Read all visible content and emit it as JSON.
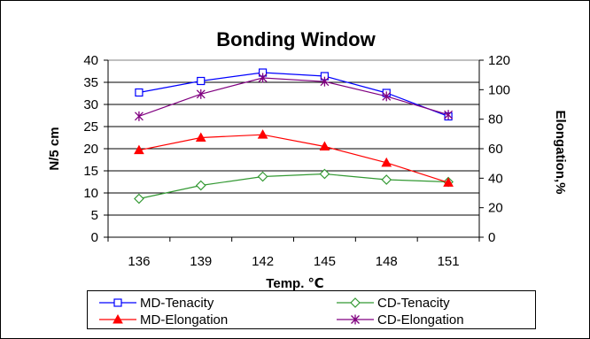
{
  "chart_data": {
    "type": "line",
    "title": "Bonding Window",
    "categories": [
      "136",
      "139",
      "142",
      "145",
      "148",
      "151"
    ],
    "xlabel": "Temp. ℃",
    "ylabel": "N/5 cm",
    "y2label": "Elongation,%",
    "ylim": [
      0,
      40
    ],
    "y2lim": [
      0,
      120
    ],
    "yticks": [
      "0",
      "5",
      "10",
      "15",
      "20",
      "25",
      "30",
      "35",
      "40"
    ],
    "y2ticks": [
      "0",
      "20",
      "40",
      "60",
      "80",
      "100",
      "120"
    ],
    "grid": true,
    "legend_position": "bottom",
    "series": [
      {
        "name": "MD-Tenacity",
        "axis": "left",
        "color": "#0000ff",
        "marker": "square-open",
        "values": [
          32.7,
          35.3,
          37.2,
          36.4,
          32.6,
          27.3
        ]
      },
      {
        "name": "CD-Tenacity",
        "axis": "left",
        "color": "#339933",
        "marker": "diamond-open",
        "values": [
          8.7,
          11.7,
          13.7,
          14.3,
          13.0,
          12.5
        ]
      },
      {
        "name": "MD-Elongation",
        "axis": "right",
        "color": "#ff0000",
        "marker": "triangle-filled",
        "values": [
          59,
          67.5,
          69.5,
          61.5,
          50.5,
          37
        ]
      },
      {
        "name": "CD-Elongation",
        "axis": "right",
        "color": "#800080",
        "marker": "star",
        "values": [
          82,
          97,
          108,
          105.5,
          95.5,
          83
        ]
      }
    ]
  }
}
